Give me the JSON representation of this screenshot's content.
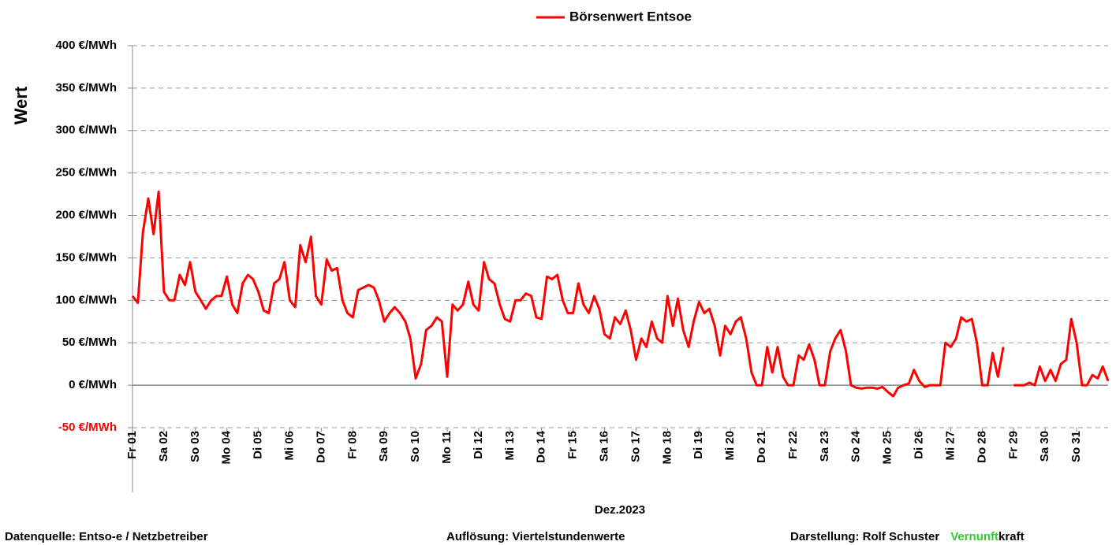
{
  "chart_data": {
    "type": "line",
    "legend_label": "Börsenwert Entsoe",
    "y_label": "Wert",
    "x_label": "Dez.2023",
    "footer": {
      "source": "Datenquelle:  Entso-e  / Netzbetreiber",
      "resolution": "Auflösung: Viertelstundenwerte",
      "author": "Darstellung:  Rolf Schuster",
      "brand_green": "Vernunft",
      "brand_black": "kraft",
      "brand_green_color": "#33cc33"
    },
    "negative_tick_color": "#ff0000",
    "grid": true,
    "xlim": [
      0,
      31
    ],
    "ylim": [
      -50,
      400
    ],
    "yticks": [
      {
        "value": -50,
        "label": "-50 €/MWh"
      },
      {
        "value": 0,
        "label": "0 €/MWh"
      },
      {
        "value": 50,
        "label": "50 €/MWh"
      },
      {
        "value": 100,
        "label": "100 €/MWh"
      },
      {
        "value": 150,
        "label": "150 €/MWh"
      },
      {
        "value": 200,
        "label": "200 €/MWh"
      },
      {
        "value": 250,
        "label": "250 €/MWh"
      },
      {
        "value": 300,
        "label": "300 €/MWh"
      },
      {
        "value": 350,
        "label": "350 €/MWh"
      },
      {
        "value": 400,
        "label": "400 €/MWh"
      }
    ],
    "xticks": [
      {
        "value": 0,
        "label": "Fr 01"
      },
      {
        "value": 1,
        "label": "Sa 02"
      },
      {
        "value": 2,
        "label": "So 03"
      },
      {
        "value": 3,
        "label": "Mo 04"
      },
      {
        "value": 4,
        "label": "Di 05"
      },
      {
        "value": 5,
        "label": "Mi 06"
      },
      {
        "value": 6,
        "label": "Do 07"
      },
      {
        "value": 7,
        "label": "Fr 08"
      },
      {
        "value": 8,
        "label": "Sa 09"
      },
      {
        "value": 9,
        "label": "So 10"
      },
      {
        "value": 10,
        "label": "Mo 11"
      },
      {
        "value": 11,
        "label": "Di 12"
      },
      {
        "value": 12,
        "label": "Mi 13"
      },
      {
        "value": 13,
        "label": "Do 14"
      },
      {
        "value": 14,
        "label": "Fr 15"
      },
      {
        "value": 15,
        "label": "Sa 16"
      },
      {
        "value": 16,
        "label": "So 17"
      },
      {
        "value": 17,
        "label": "Mo 18"
      },
      {
        "value": 18,
        "label": "Di 19"
      },
      {
        "value": 19,
        "label": "Mi 20"
      },
      {
        "value": 20,
        "label": "Do 21"
      },
      {
        "value": 21,
        "label": "Fr 22"
      },
      {
        "value": 22,
        "label": "Sa 23"
      },
      {
        "value": 23,
        "label": "So 24"
      },
      {
        "value": 24,
        "label": "Mo 25"
      },
      {
        "value": 25,
        "label": "Di 26"
      },
      {
        "value": 26,
        "label": "Mi 27"
      },
      {
        "value": 27,
        "label": "Do 28"
      },
      {
        "value": 28,
        "label": "Fr 29"
      },
      {
        "value": 29,
        "label": "Sa 30"
      },
      {
        "value": 30,
        "label": "So 31"
      }
    ],
    "series": [
      {
        "name": "Börsenwert Entsoe",
        "color": "#ff0000",
        "x": [
          0,
          0.17,
          0.33,
          0.5,
          0.67,
          0.83,
          1,
          1.17,
          1.33,
          1.5,
          1.67,
          1.83,
          2,
          2.17,
          2.33,
          2.5,
          2.67,
          2.83,
          3,
          3.17,
          3.33,
          3.5,
          3.67,
          3.83,
          4,
          4.17,
          4.33,
          4.5,
          4.67,
          4.83,
          5,
          5.17,
          5.33,
          5.5,
          5.67,
          5.83,
          6,
          6.17,
          6.33,
          6.5,
          6.67,
          6.83,
          7,
          7.17,
          7.33,
          7.5,
          7.67,
          7.83,
          8,
          8.17,
          8.33,
          8.5,
          8.67,
          8.83,
          9,
          9.17,
          9.33,
          9.5,
          9.67,
          9.83,
          10,
          10.17,
          10.33,
          10.5,
          10.67,
          10.83,
          11,
          11.17,
          11.33,
          11.5,
          11.67,
          11.83,
          12,
          12.17,
          12.33,
          12.5,
          12.67,
          12.83,
          13,
          13.17,
          13.33,
          13.5,
          13.67,
          13.83,
          14,
          14.17,
          14.33,
          14.5,
          14.67,
          14.83,
          15,
          15.17,
          15.33,
          15.5,
          15.67,
          15.83,
          16,
          16.17,
          16.33,
          16.5,
          16.67,
          16.83,
          17,
          17.17,
          17.33,
          17.5,
          17.67,
          17.83,
          18,
          18.17,
          18.33,
          18.5,
          18.67,
          18.83,
          19,
          19.17,
          19.33,
          19.5,
          19.67,
          19.83,
          20,
          20.17,
          20.33,
          20.5,
          20.67,
          20.83,
          21,
          21.17,
          21.33,
          21.5,
          21.67,
          21.83,
          22,
          22.17,
          22.33,
          22.5,
          22.67,
          22.83,
          23,
          23.17,
          23.33,
          23.5,
          23.67,
          23.83,
          24,
          24.17,
          24.33,
          24.5,
          24.67,
          24.83,
          25,
          25.17,
          25.33,
          25.5,
          25.67,
          25.83,
          26,
          26.17,
          26.33,
          26.5,
          26.67,
          26.83,
          27,
          27.17,
          27.33,
          27.5,
          27.67,
          27.83,
          28,
          28.17,
          28.33,
          28.5,
          28.67,
          28.83,
          29,
          29.17,
          29.33,
          29.5,
          29.67,
          29.83,
          30,
          30.17,
          30.33,
          30.5,
          30.67,
          30.83,
          31
        ],
        "values": [
          105,
          97,
          180,
          220,
          178,
          228,
          110,
          100,
          100,
          130,
          118,
          145,
          110,
          100,
          90,
          100,
          105,
          105,
          128,
          95,
          85,
          120,
          130,
          125,
          110,
          88,
          85,
          120,
          125,
          145,
          100,
          92,
          165,
          145,
          175,
          105,
          95,
          148,
          135,
          138,
          100,
          85,
          80,
          112,
          115,
          118,
          115,
          100,
          75,
          85,
          92,
          85,
          75,
          55,
          8,
          25,
          65,
          70,
          80,
          75,
          10,
          95,
          88,
          95,
          122,
          95,
          88,
          145,
          125,
          120,
          95,
          78,
          75,
          100,
          100,
          108,
          105,
          80,
          78,
          128,
          125,
          130,
          100,
          85,
          85,
          120,
          95,
          85,
          105,
          90,
          60,
          55,
          80,
          72,
          88,
          65,
          30,
          55,
          45,
          75,
          55,
          50,
          105,
          70,
          102,
          65,
          45,
          75,
          98,
          85,
          90,
          70,
          35,
          70,
          60,
          75,
          80,
          55,
          15,
          0,
          0,
          45,
          15,
          45,
          10,
          0,
          0,
          35,
          30,
          48,
          30,
          0,
          0,
          40,
          55,
          65,
          40,
          0,
          -3,
          -4,
          -3,
          -3,
          -4,
          -2,
          -8,
          -13,
          -3,
          0,
          2,
          18,
          5,
          -2,
          0,
          0,
          0,
          50,
          45,
          55,
          80,
          75,
          78,
          50,
          0,
          0,
          38,
          10,
          45,
          null,
          0,
          0,
          0,
          3,
          0,
          22,
          5,
          18,
          5,
          25,
          30,
          78,
          50,
          0,
          0,
          12,
          8,
          22,
          5
        ]
      }
    ]
  }
}
